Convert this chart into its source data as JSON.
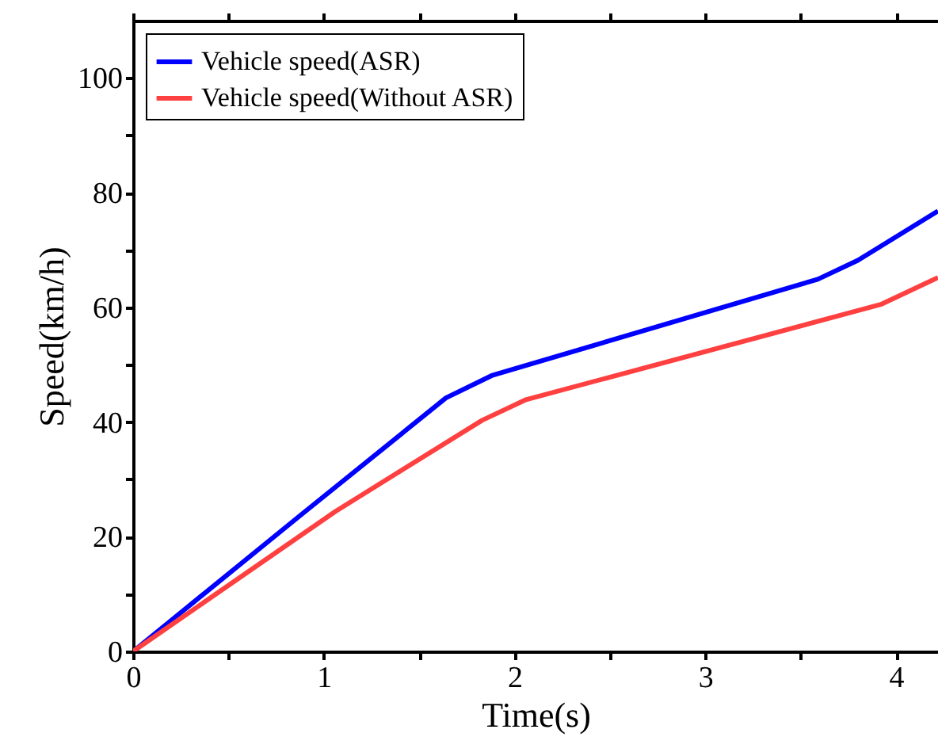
{
  "chart_data": {
    "type": "line",
    "xlabel": "Time(s)",
    "ylabel": "Speed(km/h)",
    "xlim": [
      0,
      4.22
    ],
    "ylim": [
      0,
      110
    ],
    "xticks": [
      0,
      {
        "value": 0.5,
        "label": null
      },
      1,
      {
        "value": 1.5,
        "label": null
      },
      2,
      {
        "value": 2.5,
        "label": null
      },
      3,
      {
        "value": 3.5,
        "label": null
      },
      4
    ],
    "yticks": [
      0,
      {
        "value": 10,
        "label": null
      },
      20,
      {
        "value": 30,
        "label": null
      },
      40,
      {
        "value": 50,
        "label": null
      },
      60,
      {
        "value": 70,
        "label": null
      },
      80,
      {
        "value": 90,
        "label": null
      },
      100
    ],
    "grid": false,
    "legend": "top left",
    "marker": "none",
    "line_style": "solid",
    "series": [
      {
        "name": "Vehicle speed(ASR)",
        "color": "#0000ff",
        "x": [
          0,
          0.88,
          1.64,
          1.88,
          3.59,
          3.8,
          4.22
        ],
        "values": [
          0,
          23.8,
          44.2,
          48.1,
          64.9,
          68.2,
          76.8
        ]
      },
      {
        "name": "Vehicle speed(Without ASR)",
        "color": "#ff4040",
        "x": [
          0,
          1.06,
          1.83,
          2.06,
          3.92,
          4.22
        ],
        "values": [
          0,
          24.4,
          40.3,
          43.9,
          60.5,
          65.2
        ]
      }
    ]
  }
}
